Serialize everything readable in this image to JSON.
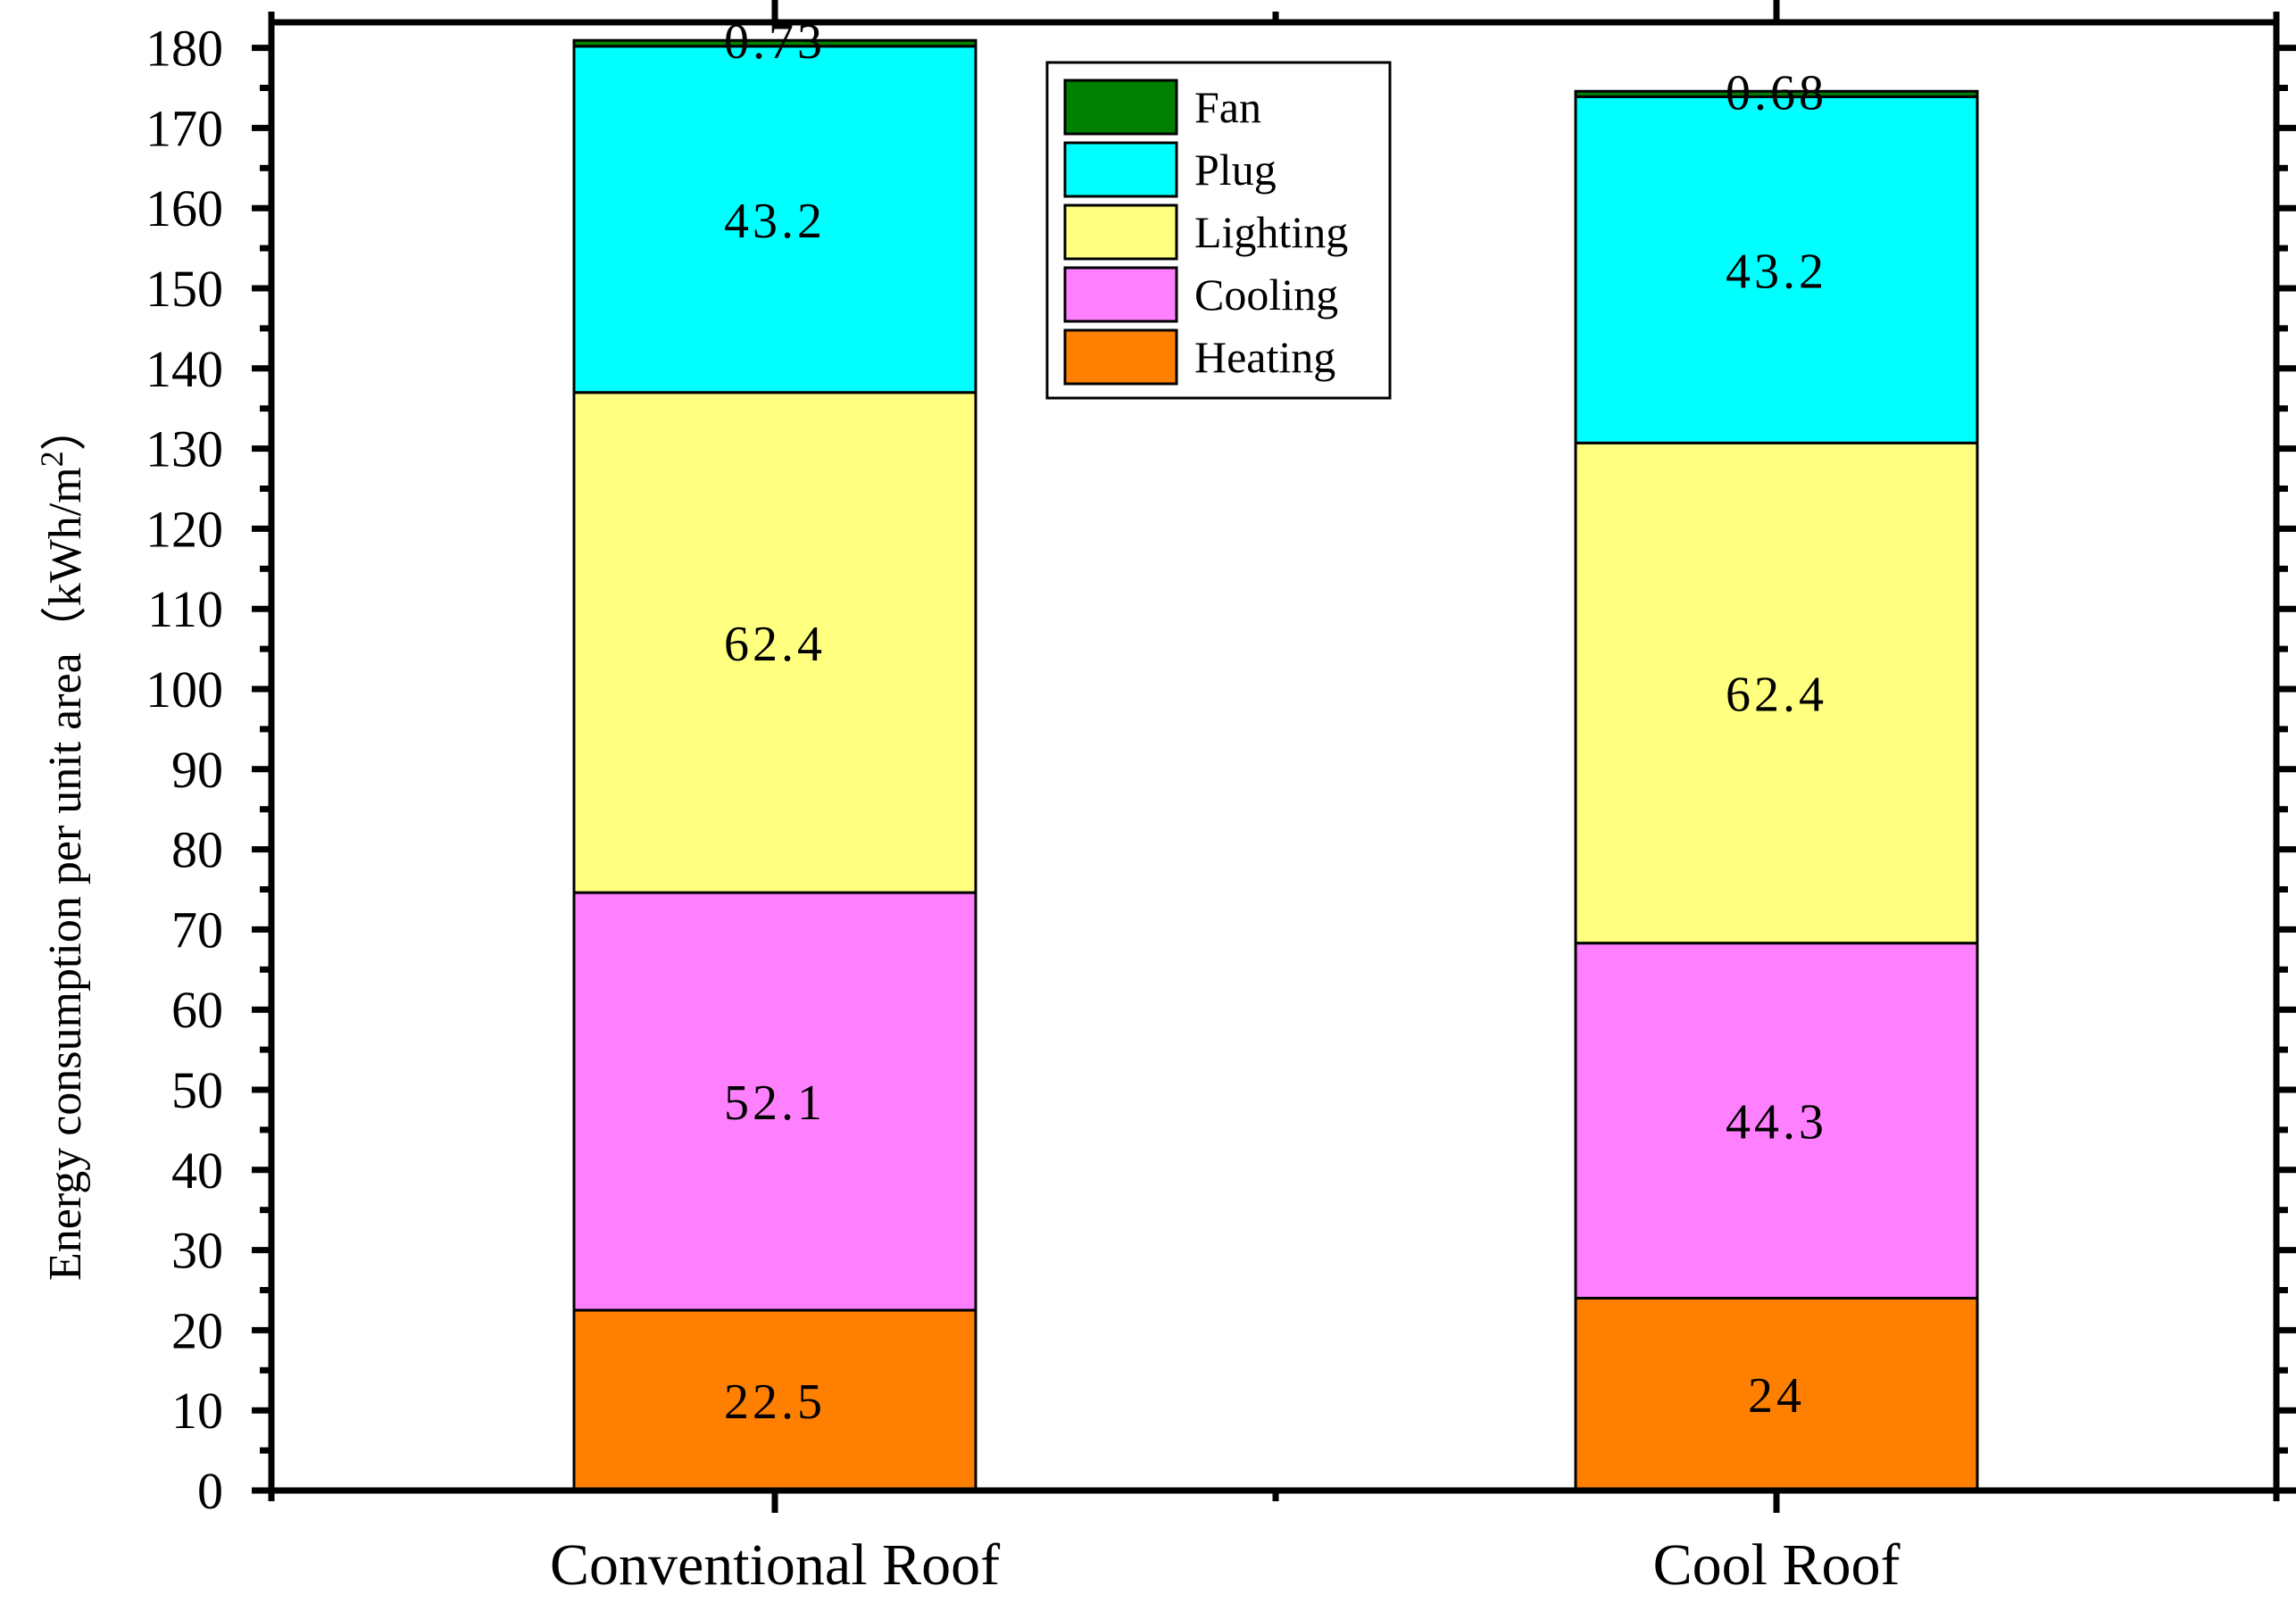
{
  "chart_data": {
    "type": "bar",
    "stacked": true,
    "title": "",
    "xlabel": "",
    "ylabel": "Energy consumption per unit area（kWh/m",
    "ylabel_superscript": "2",
    "ylabel_suffix": "）",
    "ylim": [
      0,
      180
    ],
    "yticks": [
      "0",
      "10",
      "20",
      "30",
      "40",
      "50",
      "60",
      "70",
      "80",
      "90",
      "100",
      "110",
      "120",
      "130",
      "140",
      "150",
      "160",
      "170",
      "180"
    ],
    "categories": [
      "Conventional Roof",
      "Cool Roof"
    ],
    "series": [
      {
        "name": "Heating",
        "color": "#FF8000",
        "values": [
          22.5,
          24
        ],
        "labels": [
          "22.5",
          "24"
        ]
      },
      {
        "name": "Cooling",
        "color": "#FF80FF",
        "values": [
          52.1,
          44.3
        ],
        "labels": [
          "52.1",
          "44.3"
        ]
      },
      {
        "name": "Lighting",
        "color": "#FFFF80",
        "values": [
          62.4,
          62.4
        ],
        "labels": [
          "62.4",
          "62.4"
        ]
      },
      {
        "name": "Plug",
        "color": "#00FFFF",
        "values": [
          43.2,
          43.2
        ],
        "labels": [
          "43.2",
          "43.2"
        ]
      },
      {
        "name": "Fan",
        "color": "#008000",
        "values": [
          0.73,
          0.68
        ],
        "labels": [
          "0.73",
          "0.68"
        ]
      }
    ],
    "legend": {
      "placement": "top-center",
      "order": [
        "Fan",
        "Plug",
        "Lighting",
        "Cooling",
        "Heating"
      ]
    }
  }
}
